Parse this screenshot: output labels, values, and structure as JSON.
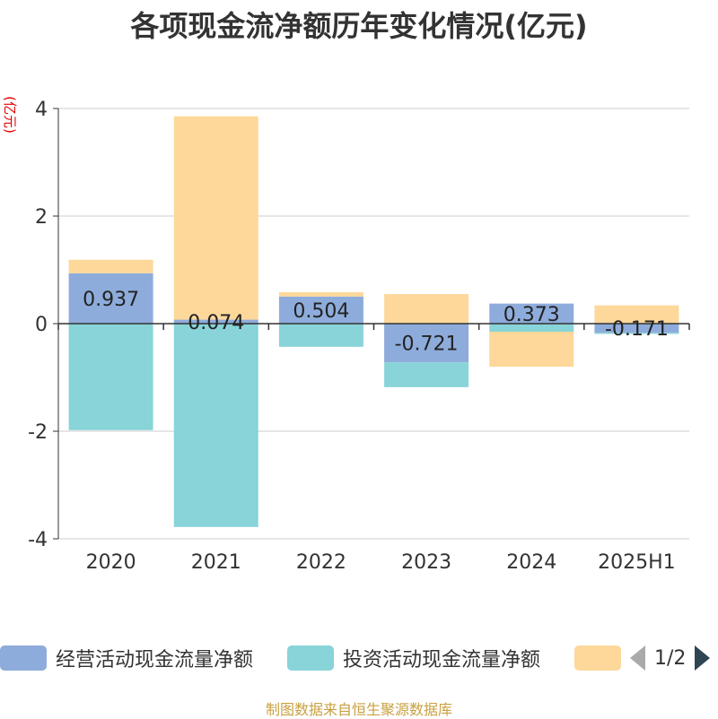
{
  "title": "各项现金流净额历年变化情况(亿元)",
  "unit_label": "(亿元)",
  "source": "制图数据来自恒生聚源数据库",
  "legend": {
    "pager": "1/2"
  },
  "colors": {
    "operating": "#8eacdb",
    "investing": "#88d4d8",
    "financing": "#fdd89a",
    "grid": "#cccccc",
    "axis": "#333333",
    "text": "#333333"
  },
  "chart_data": {
    "type": "bar",
    "stacked": true,
    "categories": [
      "2020",
      "2021",
      "2022",
      "2023",
      "2024",
      "2025H1"
    ],
    "ylim": [
      -4,
      4
    ],
    "yticks": [
      -4,
      -2,
      0,
      2,
      4
    ],
    "grid": true,
    "legend_position": "bottom",
    "series": [
      {
        "name": "经营活动现金流量净额",
        "values": [
          0.937,
          0.074,
          0.504,
          -0.721,
          0.373,
          -0.171
        ],
        "labels": [
          "0.937",
          "0.074",
          "0.504",
          "-0.721",
          "0.373",
          "-0.171"
        ]
      },
      {
        "name": "投资活动现金流量净额",
        "values": [
          -1.98,
          -3.78,
          -0.43,
          -0.46,
          -0.15,
          -0.02
        ]
      },
      {
        "name": "",
        "values": [
          0.25,
          3.78,
          0.08,
          0.55,
          -0.65,
          0.34
        ]
      }
    ]
  }
}
